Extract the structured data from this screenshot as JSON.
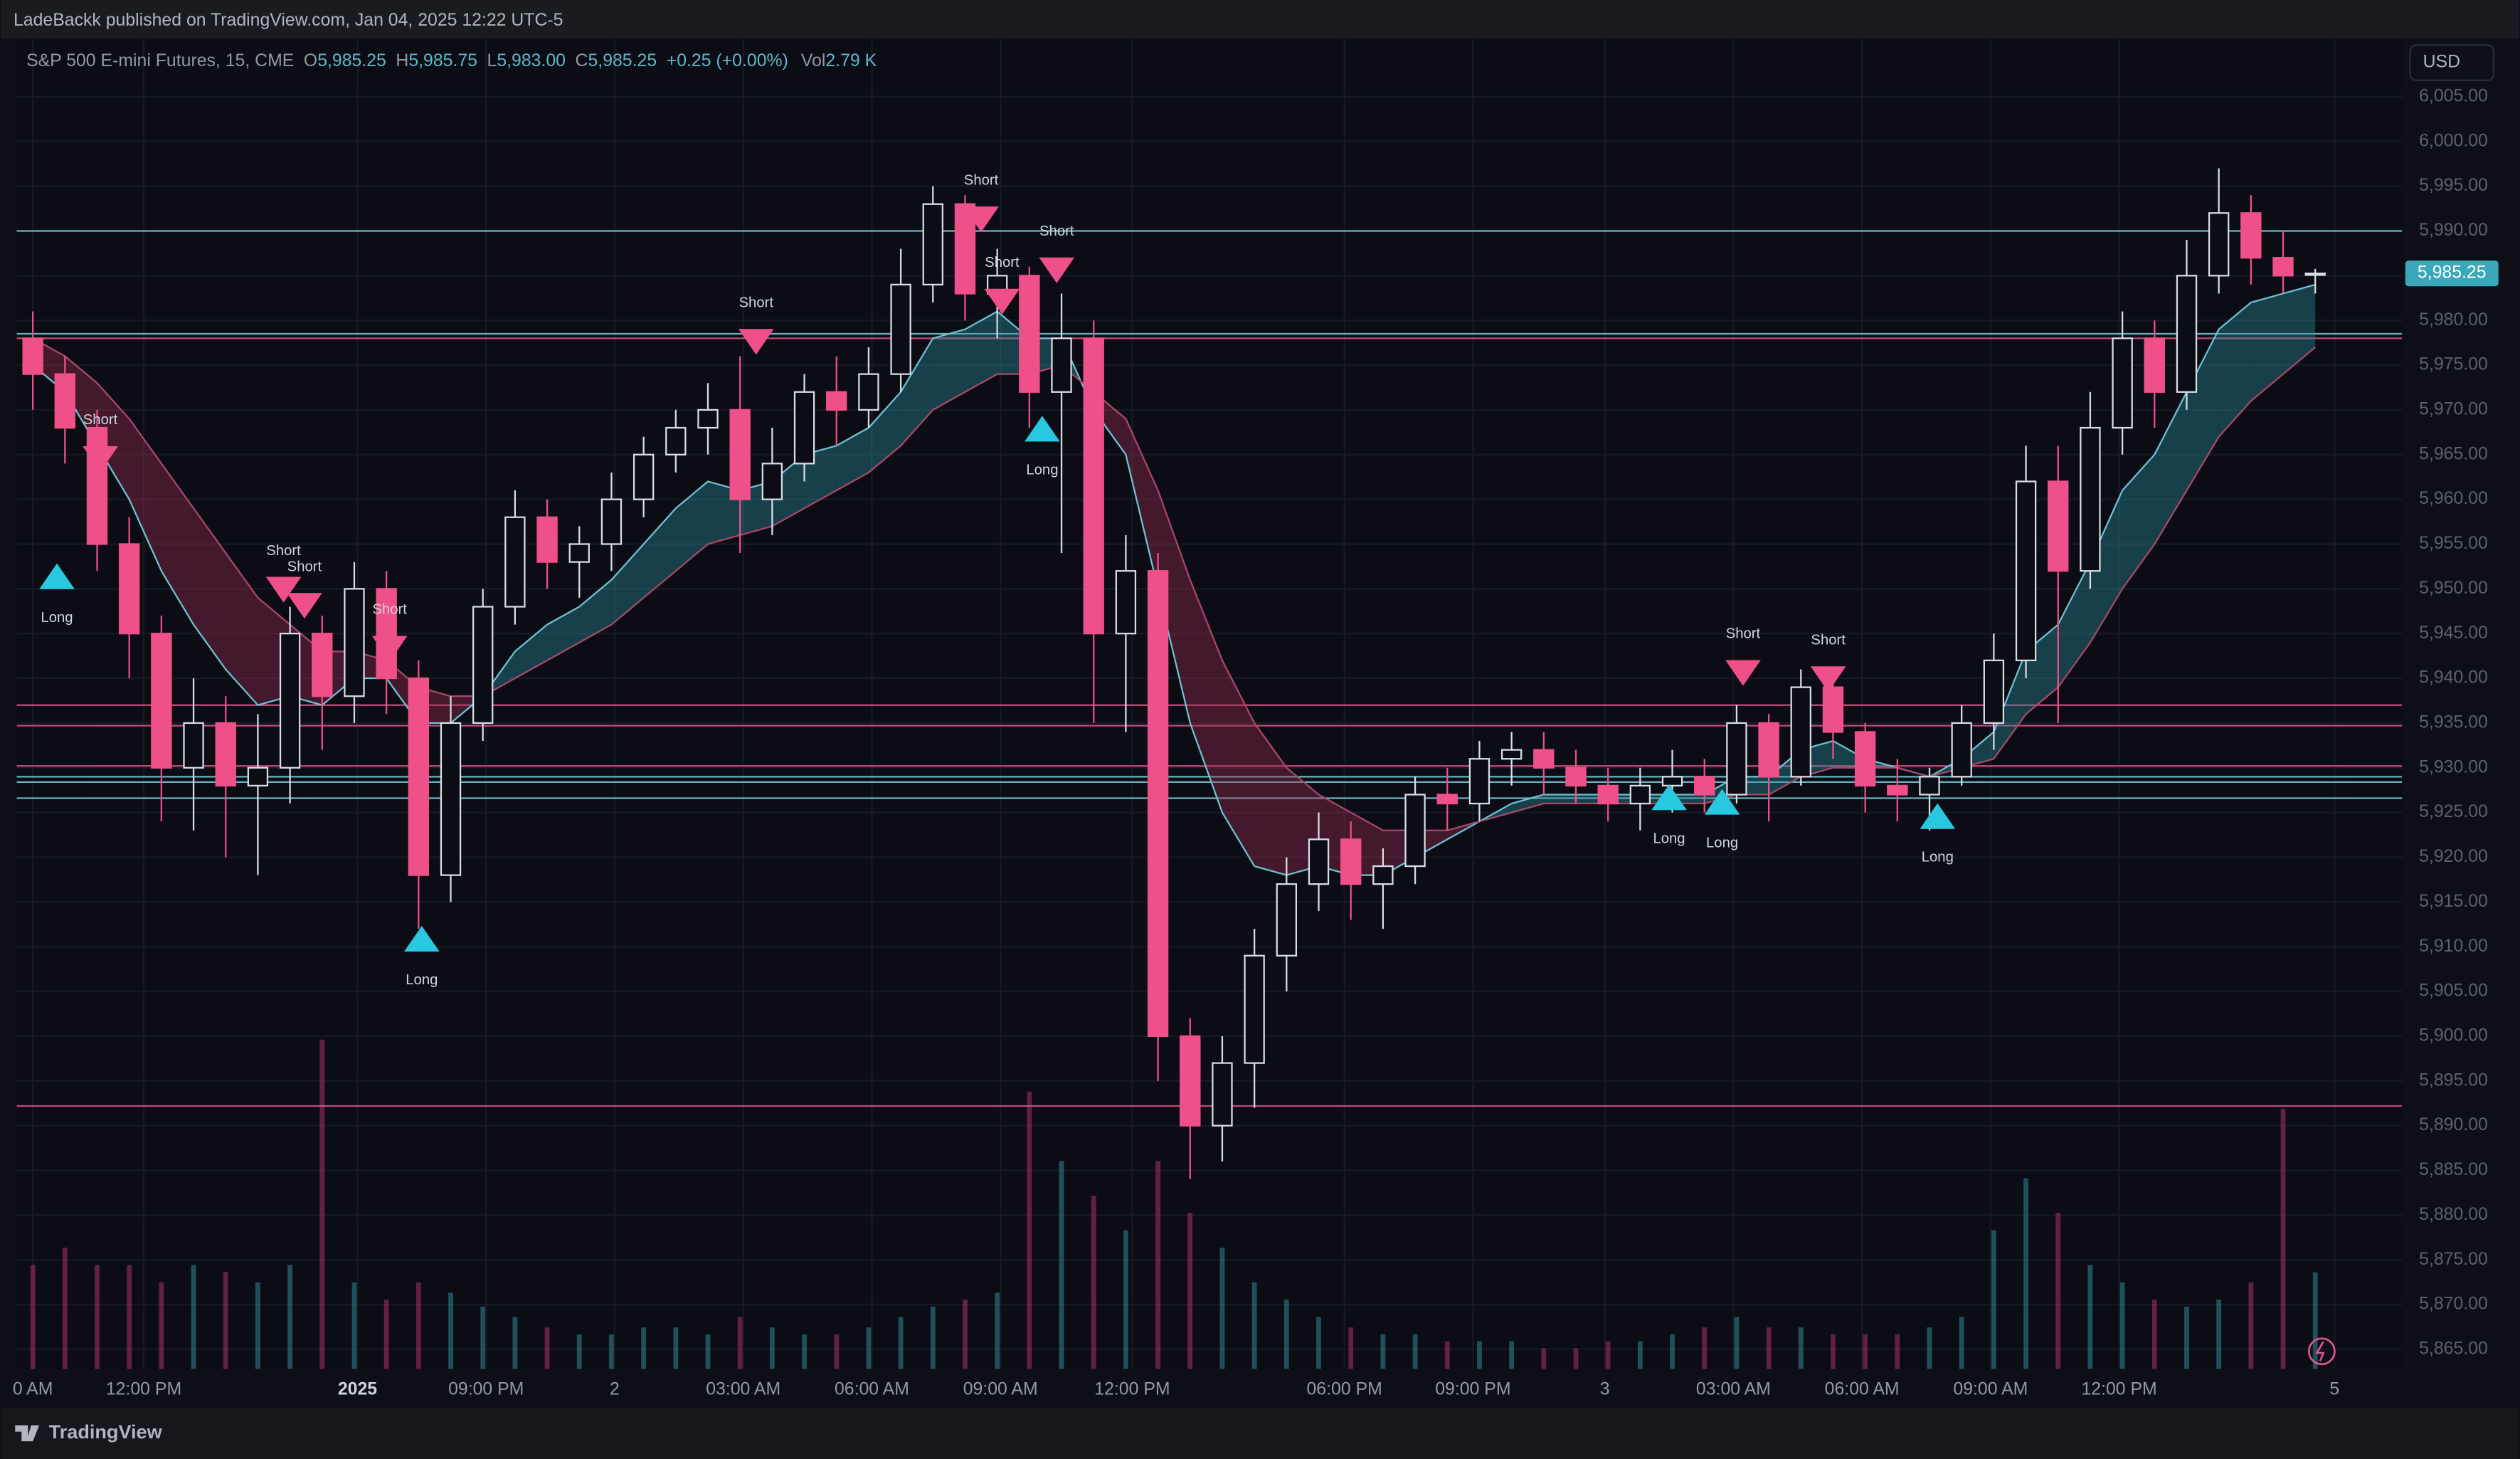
{
  "header": {
    "published": "LadeBackk published on TradingView.com, Jan 04, 2025 12:22 UTC-5"
  },
  "footer": {
    "brand": "TradingView"
  },
  "chart_data": {
    "type": "candlestick",
    "legend": {
      "symbol": "S&P 500 E-mini Futures, 15, CME",
      "items": [
        {
          "key": "O",
          "value": "5,985.25"
        },
        {
          "key": "H",
          "value": "5,985.75"
        },
        {
          "key": "L",
          "value": "5,983.00"
        },
        {
          "key": "C",
          "value": "5,985.25"
        }
      ],
      "change": "+0.25 (+0.00%)",
      "volume_key": "Vol",
      "volume_value": "2.79 K"
    },
    "currency": "USD",
    "last_price": {
      "value": 5985.25,
      "label": "5,985.25"
    },
    "open": [
      5978,
      5974,
      5968,
      5955,
      5945,
      5930,
      5935,
      5928,
      5930,
      5945,
      5938,
      5950,
      5940,
      5918,
      5935,
      5948,
      5958,
      5953,
      5955,
      5960,
      5965,
      5968,
      5970,
      5960,
      5964,
      5972,
      5970,
      5974,
      5984,
      5993,
      5983,
      5985,
      5972,
      5978,
      5945,
      5952,
      5900,
      5890,
      5897,
      5909,
      5917,
      5922,
      5917,
      5919,
      5927,
      5926,
      5931,
      5932,
      5930,
      5928,
      5926,
      5928,
      5929,
      5927,
      5935,
      5929,
      5939,
      5934,
      5928,
      5927,
      5929,
      5935,
      5942,
      5962,
      5952,
      5968,
      5978,
      5972,
      5985,
      5992,
      5987,
      5985.25
    ],
    "high": [
      5981,
      5976,
      5970,
      5958,
      5947,
      5940,
      5938,
      5936,
      5948,
      5947,
      5953,
      5952,
      5942,
      5938,
      5950,
      5961,
      5960,
      5957,
      5963,
      5967,
      5970,
      5973,
      5976,
      5968,
      5974,
      5976,
      5977,
      5988,
      5995,
      5994,
      5988,
      5986,
      5983,
      5980,
      5956,
      5954,
      5902,
      5900,
      5912,
      5920,
      5925,
      5924,
      5921,
      5929,
      5930,
      5933,
      5934,
      5934,
      5932,
      5930,
      5930,
      5932,
      5931,
      5937,
      5936,
      5941,
      5941,
      5935,
      5931,
      5930,
      5937,
      5945,
      5966,
      5966,
      5972,
      5981,
      5980,
      5989,
      5997,
      5994,
      5990,
      5985.75
    ],
    "low": [
      5970,
      5964,
      5952,
      5940,
      5924,
      5923,
      5920,
      5918,
      5926,
      5932,
      5935,
      5936,
      5912,
      5915,
      5933,
      5946,
      5950,
      5949,
      5952,
      5958,
      5963,
      5965,
      5954,
      5956,
      5962,
      5966,
      5968,
      5972,
      5982,
      5980,
      5978,
      5968,
      5954,
      5935,
      5934,
      5895,
      5884,
      5886,
      5892,
      5905,
      5914,
      5913,
      5912,
      5917,
      5923,
      5924,
      5928,
      5927,
      5926,
      5924,
      5923,
      5925,
      5925,
      5926,
      5924,
      5928,
      5931,
      5925,
      5924,
      5923,
      5928,
      5932,
      5940,
      5935,
      5950,
      5965,
      5968,
      5970,
      5983,
      5984,
      5983,
      5983
    ],
    "close": [
      5974,
      5968,
      5955,
      5945,
      5930,
      5935,
      5928,
      5930,
      5945,
      5938,
      5950,
      5940,
      5918,
      5935,
      5948,
      5958,
      5953,
      5955,
      5960,
      5965,
      5968,
      5970,
      5960,
      5964,
      5972,
      5970,
      5974,
      5984,
      5993,
      5983,
      5985,
      5972,
      5978,
      5945,
      5952,
      5900,
      5890,
      5897,
      5909,
      5917,
      5922,
      5917,
      5919,
      5927,
      5926,
      5931,
      5932,
      5930,
      5928,
      5926,
      5928,
      5929,
      5927,
      5935,
      5929,
      5939,
      5934,
      5928,
      5927,
      5929,
      5935,
      5942,
      5962,
      5952,
      5968,
      5978,
      5972,
      5985,
      5992,
      5987,
      5985,
      5985.25
    ],
    "volume": [
      3,
      3.5,
      3,
      3,
      2.5,
      3,
      2.8,
      2.5,
      3,
      9.5,
      2.5,
      2,
      2.5,
      2.2,
      1.8,
      1.5,
      1.2,
      1,
      1,
      1.2,
      1.2,
      1,
      1.5,
      1.2,
      1,
      1,
      1.2,
      1.5,
      1.8,
      2,
      2.2,
      8,
      6,
      5,
      4,
      6,
      4.5,
      3.5,
      2.5,
      2,
      1.5,
      1.2,
      1,
      1,
      0.8,
      0.8,
      0.8,
      0.6,
      0.6,
      0.8,
      0.8,
      1,
      1.2,
      1.5,
      1.2,
      1.2,
      1,
      1,
      1,
      1.2,
      1.5,
      4,
      5.5,
      4.5,
      3,
      2.5,
      2,
      1.8,
      2,
      2.5,
      7.5,
      2.79
    ],
    "ema_fast": {
      "color": "#6cc3d2",
      "values": [
        5975,
        5972,
        5966,
        5960,
        5952,
        5946,
        5941,
        5937,
        5938,
        5937,
        5940,
        5940,
        5935,
        5935,
        5938,
        5943,
        5946,
        5948,
        5951,
        5955,
        5959,
        5962,
        5961,
        5962,
        5965,
        5966,
        5968,
        5972,
        5978,
        5979,
        5981,
        5978,
        5978,
        5970,
        5965,
        5950,
        5935,
        5925,
        5919,
        5918,
        5919,
        5918,
        5918,
        5920,
        5922,
        5924,
        5926,
        5927,
        5927,
        5927,
        5927,
        5927,
        5927,
        5929,
        5929,
        5932,
        5933,
        5931,
        5930,
        5929,
        5931,
        5934,
        5943,
        5946,
        5953,
        5961,
        5965,
        5972,
        5979,
        5982,
        5983,
        5984
      ]
    },
    "ema_slow": {
      "color": "#a8476c",
      "values": [
        5978,
        5976,
        5973,
        5969,
        5964,
        5959,
        5954,
        5949,
        5946,
        5943,
        5943,
        5942,
        5939,
        5938,
        5938,
        5940,
        5942,
        5944,
        5946,
        5949,
        5952,
        5955,
        5956,
        5957,
        5959,
        5961,
        5963,
        5966,
        5970,
        5972,
        5974,
        5974,
        5975,
        5972,
        5969,
        5961,
        5951,
        5942,
        5935,
        5930,
        5927,
        5925,
        5923,
        5923,
        5923,
        5924,
        5925,
        5926,
        5926,
        5926,
        5926,
        5926,
        5926,
        5927,
        5927,
        5929,
        5930,
        5930,
        5930,
        5929,
        5930,
        5931,
        5936,
        5939,
        5944,
        5950,
        5955,
        5961,
        5967,
        5971,
        5974,
        5977
      ]
    },
    "fill_up_color": "#2a8e9a",
    "fill_down_color": "#9a2c52",
    "up_color": "#d8dde6",
    "down_color": "#f0508a",
    "volume_up_color": "#2e7d8c",
    "volume_down_color": "#9c2f58",
    "levels": [
      {
        "value": 5990,
        "color": "#7ad0de"
      },
      {
        "value": 5978.5,
        "color": "#7ad0de"
      },
      {
        "value": 5978,
        "color": "#e0578a"
      },
      {
        "value": 5937,
        "color": "#e0578a"
      },
      {
        "value": 5934.7,
        "color": "#e0578a"
      },
      {
        "value": 5930.2,
        "color": "#e0578a"
      },
      {
        "value": 5929,
        "color": "#7ad0de"
      },
      {
        "value": 5928.4,
        "color": "#7ad0de"
      },
      {
        "value": 5926.6,
        "color": "#7ad0de"
      },
      {
        "value": 5892.2,
        "color": "#e0578a"
      }
    ],
    "signals": [
      {
        "label": "Short",
        "x": 2.1,
        "price": 5964.5
      },
      {
        "label": "Short",
        "x": 7.8,
        "price": 5949.9
      },
      {
        "label": "Short",
        "x": 8.45,
        "price": 5948.1
      },
      {
        "label": "Short",
        "x": 11.1,
        "price": 5943.3
      },
      {
        "label": "Short",
        "x": 22.5,
        "price": 5977.6
      },
      {
        "label": "Short",
        "x": 29.5,
        "price": 5991.3
      },
      {
        "label": "Short",
        "x": 30.15,
        "price": 5982.1
      },
      {
        "label": "Short",
        "x": 31.85,
        "price": 5985.6
      },
      {
        "label": "Short",
        "x": 53.2,
        "price": 5940.6
      },
      {
        "label": "Short",
        "x": 55.85,
        "price": 5939.9
      },
      {
        "label": "Long",
        "x": 0.75,
        "price": 5951.4
      },
      {
        "label": "Long",
        "x": 12.1,
        "price": 5910.9
      },
      {
        "label": "Long",
        "x": 31.4,
        "price": 5967.9
      },
      {
        "label": "Long",
        "x": 50.9,
        "price": 5926.7
      },
      {
        "label": "Long",
        "x": 52.55,
        "price": 5926.2
      },
      {
        "label": "Long",
        "x": 59.25,
        "price": 5924.6
      }
    ],
    "short_color": "#f0508a",
    "long_color": "#28c8e0",
    "xlim": [
      -0.5,
      73.7
    ],
    "xticks": [
      {
        "value": 0,
        "label": "0 AM"
      },
      {
        "value": 3.45,
        "label": "12:00 PM"
      },
      {
        "value": 10.1,
        "label": "2025"
      },
      {
        "value": 14.1,
        "label": "09:00 PM"
      },
      {
        "value": 18.1,
        "label": "2"
      },
      {
        "value": 22.1,
        "label": "03:00 AM"
      },
      {
        "value": 26.1,
        "label": "06:00 AM"
      },
      {
        "value": 30.1,
        "label": "09:00 AM"
      },
      {
        "value": 34.2,
        "label": "12:00 PM"
      },
      {
        "value": 40.8,
        "label": "06:00 PM"
      },
      {
        "value": 44.8,
        "label": "09:00 PM"
      },
      {
        "value": 48.9,
        "label": "3"
      },
      {
        "value": 52.9,
        "label": "03:00 AM"
      },
      {
        "value": 56.9,
        "label": "06:00 AM"
      },
      {
        "value": 60.9,
        "label": "09:00 AM"
      },
      {
        "value": 64.9,
        "label": "12:00 PM"
      },
      {
        "value": 71.6,
        "label": "5"
      }
    ],
    "bold_xticks": [
      2
    ],
    "ylim": [
      5862.8,
      6011.5
    ],
    "yticks": [
      {
        "value": 5865,
        "label": "5,865.00"
      },
      {
        "value": 5870,
        "label": "5,870.00"
      },
      {
        "value": 5875,
        "label": "5,875.00"
      },
      {
        "value": 5880,
        "label": "5,880.00"
      },
      {
        "value": 5885,
        "label": "5,885.00"
      },
      {
        "value": 5890,
        "label": "5,890.00"
      },
      {
        "value": 5895,
        "label": "5,895.00"
      },
      {
        "value": 5900,
        "label": "5,900.00"
      },
      {
        "value": 5905,
        "label": "5,905.00"
      },
      {
        "value": 5910,
        "label": "5,910.00"
      },
      {
        "value": 5915,
        "label": "5,915.00"
      },
      {
        "value": 5920,
        "label": "5,920.00"
      },
      {
        "value": 5925,
        "label": "5,925.00"
      },
      {
        "value": 5930,
        "label": "5,930.00"
      },
      {
        "value": 5935,
        "label": "5,935.00"
      },
      {
        "value": 5940,
        "label": "5,940.00"
      },
      {
        "value": 5945,
        "label": "5,945.00"
      },
      {
        "value": 5950,
        "label": "5,950.00"
      },
      {
        "value": 5955,
        "label": "5,955.00"
      },
      {
        "value": 5960,
        "label": "5,960.00"
      },
      {
        "value": 5965,
        "label": "5,965.00"
      },
      {
        "value": 5970,
        "label": "5,970.00"
      },
      {
        "value": 5975,
        "label": "5,975.00"
      },
      {
        "value": 5980,
        "label": "5,980.00"
      },
      {
        "value": 5985,
        "label": "5,985.00"
      },
      {
        "value": 5990,
        "label": "5,990.00"
      },
      {
        "value": 5995,
        "label": "5,995.00"
      },
      {
        "value": 6000,
        "label": "6,000.00"
      },
      {
        "value": 6005,
        "label": "6,005.00"
      }
    ],
    "grid": true
  }
}
